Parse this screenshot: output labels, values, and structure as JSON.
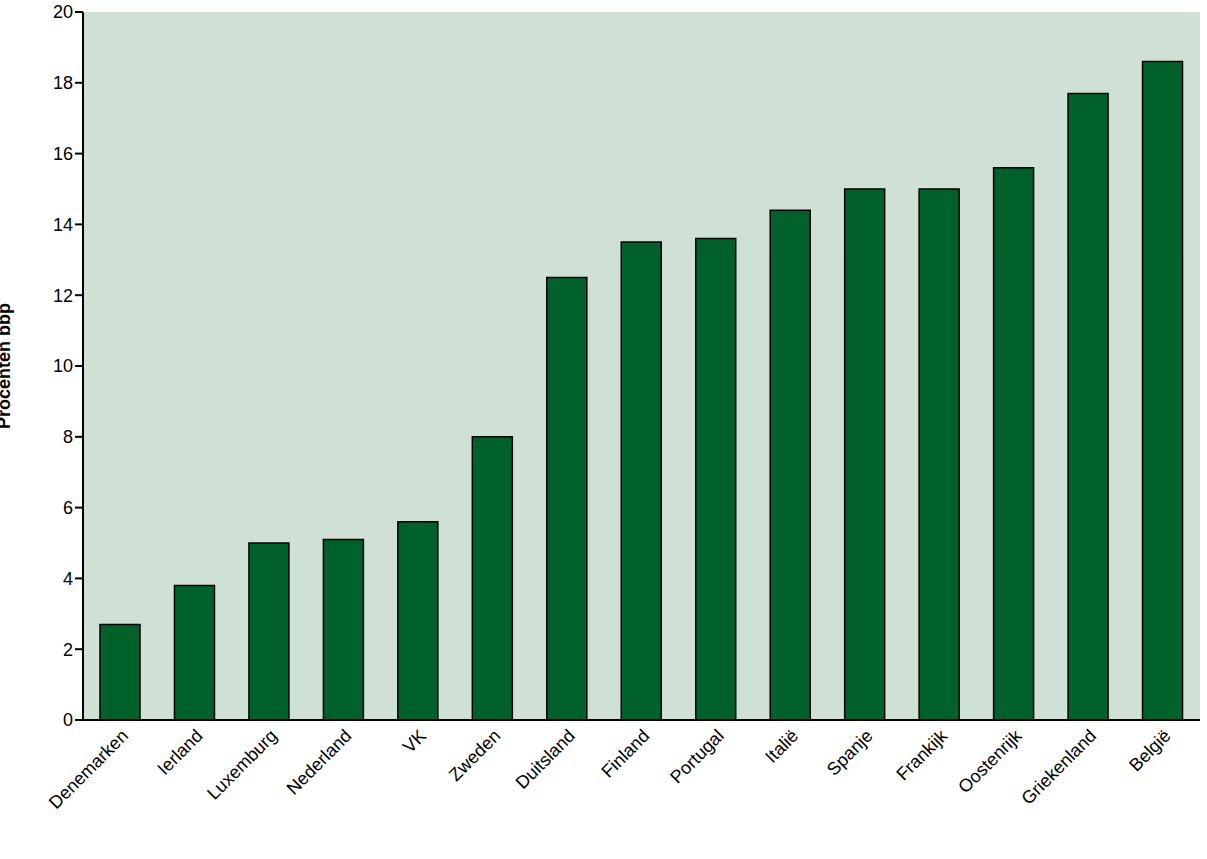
{
  "chart_data": {
    "type": "bar",
    "y_label": "Procenten bbp",
    "categories": [
      "Denemarken",
      "Ierland",
      "Luxemburg",
      "Nederland",
      "VK",
      "Zweden",
      "Duitsland",
      "Finland",
      "Portugal",
      "Italië",
      "Spanje",
      "Frankijk",
      "Oostenrijk",
      "Griekenland",
      "België"
    ],
    "values": [
      2.7,
      3.8,
      5.0,
      5.1,
      5.6,
      8.0,
      12.5,
      13.5,
      13.6,
      14.4,
      15.0,
      15.0,
      15.6,
      17.7,
      18.6
    ],
    "color": "#00622a",
    "ylim": [
      0,
      20
    ],
    "yticks": [
      0,
      2,
      4,
      6,
      8,
      10,
      12,
      14,
      16,
      18,
      20
    ],
    "grid": false
  }
}
